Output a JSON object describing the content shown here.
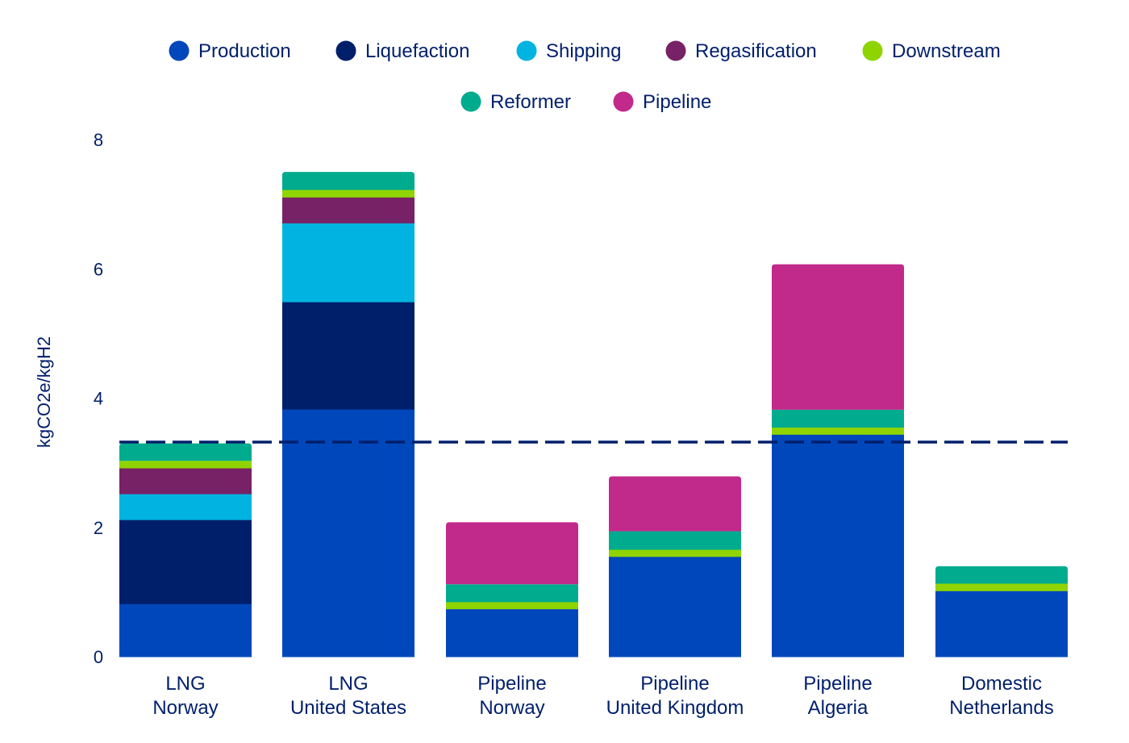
{
  "chart_data": {
    "type": "bar",
    "stacked": true,
    "title": "",
    "xlabel": "",
    "ylabel": "kgCO2e/kgH2",
    "ylim": [
      0,
      8
    ],
    "yticks": [
      0,
      2,
      4,
      6,
      8
    ],
    "grid": false,
    "legend_position": "top-center",
    "categories": [
      [
        "LNG",
        "Norway"
      ],
      [
        "LNG",
        "United States"
      ],
      [
        "Pipeline",
        "Norway"
      ],
      [
        "Pipeline",
        "United Kingdom"
      ],
      [
        "Pipeline",
        "Algeria"
      ],
      [
        "Domestic",
        "Netherlands"
      ]
    ],
    "series": [
      {
        "name": "Production",
        "color": "#0047bb",
        "values": [
          0.82,
          3.83,
          0.74,
          1.55,
          3.44,
          1.02
        ]
      },
      {
        "name": "Liquefaction",
        "color": "#001f6b",
        "values": [
          1.3,
          1.66,
          0,
          0,
          0,
          0
        ]
      },
      {
        "name": "Shipping",
        "color": "#00b3e0",
        "values": [
          0.4,
          1.22,
          0,
          0,
          0,
          0
        ]
      },
      {
        "name": "Regasification",
        "color": "#772166",
        "values": [
          0.4,
          0.4,
          0,
          0,
          0,
          0
        ]
      },
      {
        "name": "Downstream",
        "color": "#8fd400",
        "values": [
          0.11,
          0.11,
          0.11,
          0.11,
          0.11,
          0.11
        ]
      },
      {
        "name": "Reformer",
        "color": "#00ab8e",
        "values": [
          0.27,
          0.28,
          0.27,
          0.28,
          0.27,
          0.27
        ]
      },
      {
        "name": "Pipeline",
        "color": "#c1298a",
        "values": [
          0,
          0,
          0.96,
          0.85,
          2.25,
          0
        ]
      }
    ],
    "reference_line": {
      "value": 3.32,
      "style": "dashed",
      "color": "#001f6b"
    },
    "colors": {
      "text": "#001f6b",
      "axis_text": "#001f6b"
    }
  }
}
